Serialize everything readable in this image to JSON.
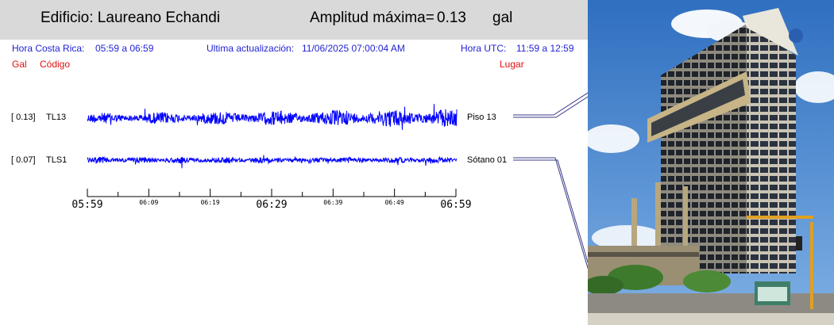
{
  "header": {
    "building": "Edificio: Laureano Echandi",
    "amplitude_label": "Amplitud máxima=",
    "amplitude_value": "0.13",
    "amplitude_unit": "gal"
  },
  "info": {
    "local_time_label": "Hora Costa Rica:",
    "local_time_range": "05:59 a 06:59",
    "updated_label": "Ultima actualización:",
    "updated_value": "11/06/2025 07:00:04 AM",
    "utc_label": "Hora UTC:",
    "utc_range": "11:59 a 12:59"
  },
  "columns": {
    "gal": "Gal",
    "code": "Código",
    "place": "Lugar"
  },
  "traces": [
    {
      "bracket_value": "[   0.13]",
      "code": "TL13",
      "place": "Piso 13",
      "peak_gal": 0.13
    },
    {
      "bracket_value": "[   0.07]",
      "code": "TLS1",
      "place": "Sótano 01",
      "peak_gal": 0.07
    }
  ],
  "time_axis": {
    "major": [
      "05:59",
      "06:29",
      "06:59"
    ],
    "minor": [
      "06:09",
      "06:19",
      "06:39",
      "06:49"
    ]
  },
  "colors": {
    "trace": "#0000ff",
    "info_text": "#1f1fd6",
    "legend_text": "#e01010",
    "header_bg": "#d9d9d9"
  },
  "photo": {
    "subject": "building-photo"
  }
}
